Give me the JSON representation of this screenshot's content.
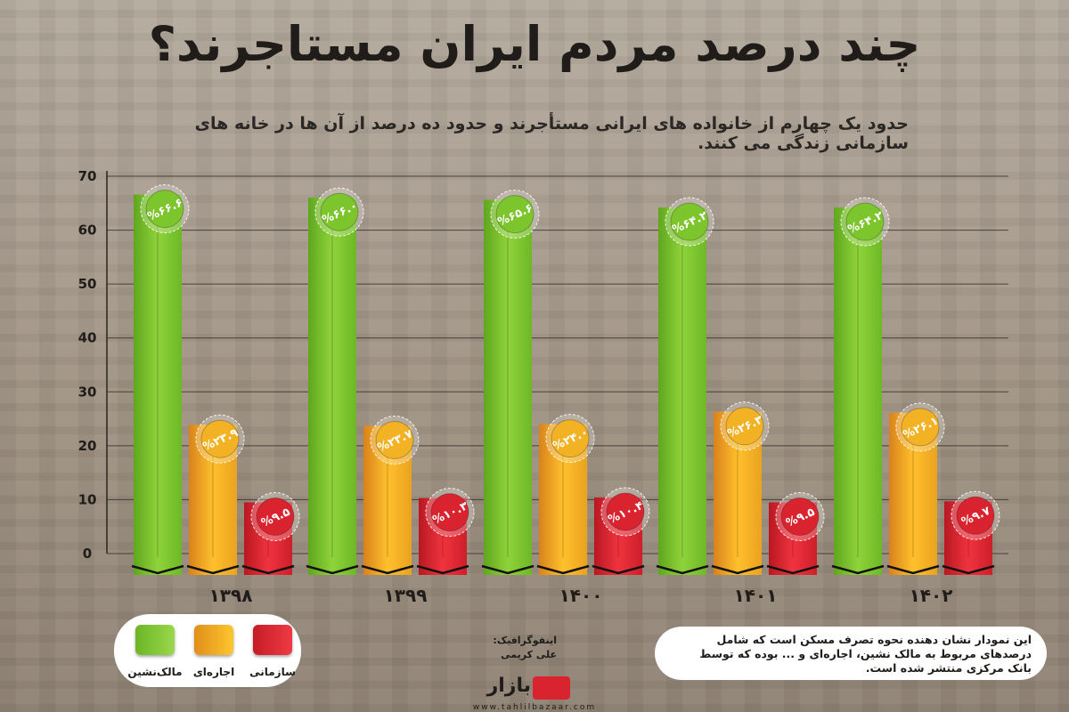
{
  "header": {
    "title": "چند درصد مردم ایران مستاجرند؟",
    "subtitle": "حدود یک چهارم از خانواده های ایرانی مستأجرند و حدود ده درصد از آن ها در خانه های سازمانی زندگی می کنند."
  },
  "chart_data": {
    "type": "bar",
    "categories": [
      "۱۳۹۸",
      "۱۳۹۹",
      "۱۴۰۰",
      "۱۴۰۱",
      "۱۴۰۲"
    ],
    "series": [
      {
        "name": "مالک‌نشین",
        "color": "#7cc52d",
        "values": [
          66.6,
          66.0,
          65.6,
          64.2,
          64.2
        ],
        "labels": [
          "%۶۶.۶",
          "%۶۶.۰",
          "%۶۵.۶",
          "%۶۴.۲",
          "%۶۴.۲"
        ]
      },
      {
        "name": "اجاره‌ای",
        "color": "#f2a21e",
        "values": [
          23.9,
          23.7,
          24.0,
          26.3,
          26.1
        ],
        "labels": [
          "%۲۳.۹",
          "%۲۳.۷",
          "%۲۴.۰",
          "%۲۶.۳",
          "%۲۶.۱"
        ]
      },
      {
        "name": "سازمانی",
        "color": "#d9232e",
        "values": [
          9.5,
          10.3,
          10.4,
          9.5,
          9.7
        ],
        "labels": [
          "%۹.۵",
          "%۱۰.۳",
          "%۱۰.۴",
          "%۹.۵",
          "%۹.۷"
        ]
      }
    ],
    "yticks": [
      "0",
      "10",
      "20",
      "30",
      "40",
      "50",
      "60",
      "70"
    ],
    "ylim": [
      0,
      70
    ],
    "grid": true,
    "legend": "bottom-left"
  },
  "credit": {
    "line1": "اینفوگرافیک:",
    "line2": "علی کریمی"
  },
  "note": "این نمودار نشان دهنده نحوه تصرف  مسکن است که شامل درصدهای مربوط به مالک نشین، اجاره‌ای و ... بوده که توسط بانک مرکزی منتشر شده است.",
  "logo": {
    "name": "بازار",
    "url": "www.tahlilbazaar.com"
  }
}
